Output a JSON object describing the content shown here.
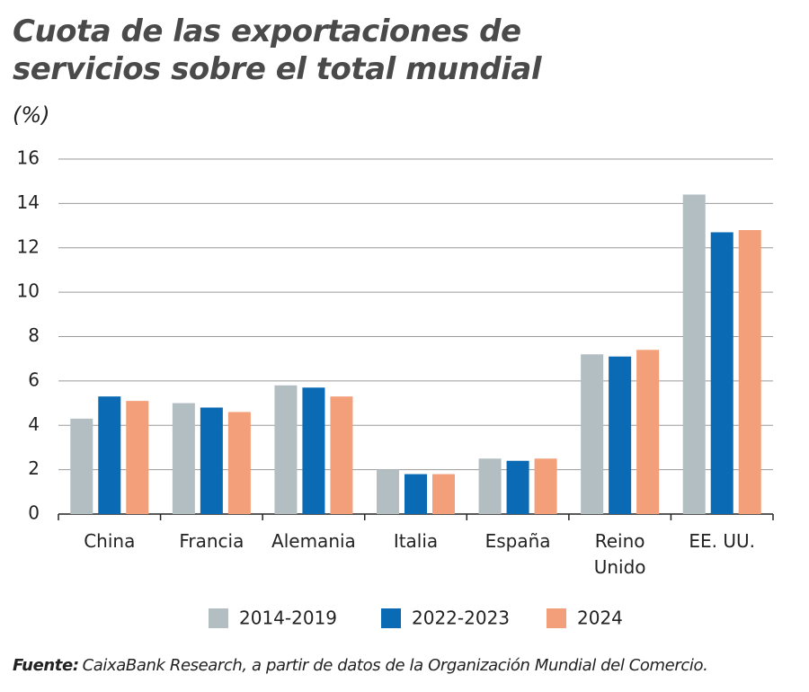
{
  "chart_data": {
    "type": "bar",
    "title": "Cuota de las exportaciones de servicios sobre el total mundial",
    "y_label": "(%)",
    "categories": [
      "China",
      "Francia",
      "Alemania",
      "Italia",
      "España",
      "Reino Unido",
      "EE. UU."
    ],
    "series": [
      {
        "name": "2014-2019",
        "color": "#b3bec3",
        "values": [
          4.3,
          5.0,
          5.8,
          2.0,
          2.5,
          7.2,
          14.4
        ]
      },
      {
        "name": "2022-2023",
        "color": "#0a6ab4",
        "values": [
          5.3,
          4.8,
          5.7,
          1.8,
          2.4,
          7.1,
          12.7
        ]
      },
      {
        "name": "2024",
        "color": "#f39f79",
        "values": [
          5.1,
          4.6,
          5.3,
          1.8,
          2.5,
          7.4,
          12.8
        ]
      }
    ],
    "ylim": [
      0,
      16
    ],
    "yticks": [
      0,
      2,
      4,
      6,
      8,
      10,
      12,
      14,
      16
    ],
    "grid": true,
    "legend": "bottom",
    "source_label": "Fuente:",
    "source": "CaixaBank Research, a partir de datos de la Organización Mundial del Comercio."
  }
}
